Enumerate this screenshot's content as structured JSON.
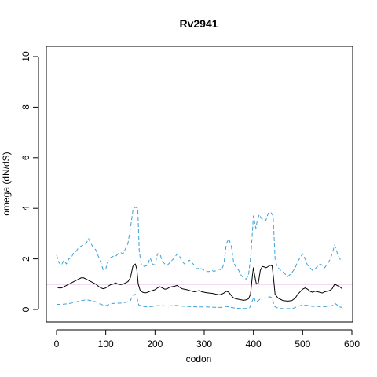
{
  "chart_data": {
    "type": "line",
    "title": "Rv2941",
    "xlabel": "codon",
    "ylabel": "omega (dN/dS)",
    "xlim": [
      0,
      600
    ],
    "ylim": [
      0,
      10
    ],
    "x_ticks": [
      0,
      100,
      200,
      300,
      400,
      500,
      600
    ],
    "y_ticks": [
      0,
      2,
      4,
      6,
      8,
      10
    ],
    "x_tick_labels": [
      "0",
      "100",
      "200",
      "300",
      "400",
      "500",
      "600"
    ],
    "y_tick_labels": [
      "0",
      "2",
      "4",
      "6",
      "8",
      "10"
    ],
    "grid": false,
    "reference_line": {
      "y": 1,
      "color": "#cc66cc"
    },
    "series": [
      {
        "role": "upper-ci",
        "color": "#3aa0d8",
        "dash": "dashed",
        "points": [
          [
            0,
            2.15
          ],
          [
            5,
            1.85
          ],
          [
            10,
            1.75
          ],
          [
            15,
            1.95
          ],
          [
            20,
            1.8
          ],
          [
            25,
            2.0
          ],
          [
            30,
            2.05
          ],
          [
            35,
            2.25
          ],
          [
            40,
            2.3
          ],
          [
            45,
            2.45
          ],
          [
            50,
            2.5
          ],
          [
            55,
            2.55
          ],
          [
            60,
            2.6
          ],
          [
            65,
            2.8
          ],
          [
            70,
            2.6
          ],
          [
            75,
            2.45
          ],
          [
            80,
            2.35
          ],
          [
            85,
            2.1
          ],
          [
            90,
            1.85
          ],
          [
            95,
            1.55
          ],
          [
            100,
            1.6
          ],
          [
            105,
            1.95
          ],
          [
            110,
            2.05
          ],
          [
            115,
            2.1
          ],
          [
            120,
            2.1
          ],
          [
            125,
            2.2
          ],
          [
            130,
            2.25
          ],
          [
            135,
            2.2
          ],
          [
            140,
            2.4
          ],
          [
            145,
            2.6
          ],
          [
            150,
            3.2
          ],
          [
            155,
            3.9
          ],
          [
            160,
            4.05
          ],
          [
            165,
            4.0
          ],
          [
            168,
            2.3
          ],
          [
            172,
            1.8
          ],
          [
            178,
            1.7
          ],
          [
            185,
            1.75
          ],
          [
            190,
            2.05
          ],
          [
            195,
            1.8
          ],
          [
            200,
            1.75
          ],
          [
            205,
            2.2
          ],
          [
            210,
            2.2
          ],
          [
            215,
            1.9
          ],
          [
            220,
            1.8
          ],
          [
            225,
            1.75
          ],
          [
            230,
            1.85
          ],
          [
            235,
            1.95
          ],
          [
            240,
            2.05
          ],
          [
            245,
            2.2
          ],
          [
            250,
            2.1
          ],
          [
            255,
            1.9
          ],
          [
            260,
            1.8
          ],
          [
            265,
            1.85
          ],
          [
            270,
            1.95
          ],
          [
            275,
            1.85
          ],
          [
            280,
            1.75
          ],
          [
            285,
            1.6
          ],
          [
            290,
            1.65
          ],
          [
            295,
            1.6
          ],
          [
            300,
            1.55
          ],
          [
            305,
            1.5
          ],
          [
            310,
            1.5
          ],
          [
            315,
            1.55
          ],
          [
            320,
            1.5
          ],
          [
            325,
            1.55
          ],
          [
            330,
            1.6
          ],
          [
            335,
            1.55
          ],
          [
            340,
            1.8
          ],
          [
            345,
            2.6
          ],
          [
            350,
            2.8
          ],
          [
            355,
            2.5
          ],
          [
            360,
            1.85
          ],
          [
            365,
            1.65
          ],
          [
            370,
            1.55
          ],
          [
            375,
            1.35
          ],
          [
            380,
            1.25
          ],
          [
            385,
            1.2
          ],
          [
            390,
            1.35
          ],
          [
            395,
            2.2
          ],
          [
            400,
            3.7
          ],
          [
            405,
            3.2
          ],
          [
            408,
            3.55
          ],
          [
            412,
            3.75
          ],
          [
            416,
            3.6
          ],
          [
            420,
            3.55
          ],
          [
            425,
            3.5
          ],
          [
            430,
            3.8
          ],
          [
            435,
            3.85
          ],
          [
            440,
            3.7
          ],
          [
            444,
            2.0
          ],
          [
            448,
            1.7
          ],
          [
            455,
            1.55
          ],
          [
            462,
            1.45
          ],
          [
            470,
            1.3
          ],
          [
            478,
            1.45
          ],
          [
            485,
            1.65
          ],
          [
            490,
            1.9
          ],
          [
            495,
            2.05
          ],
          [
            500,
            2.2
          ],
          [
            505,
            2.0
          ],
          [
            510,
            1.75
          ],
          [
            515,
            1.65
          ],
          [
            520,
            1.55
          ],
          [
            525,
            1.6
          ],
          [
            530,
            1.7
          ],
          [
            535,
            1.8
          ],
          [
            540,
            1.75
          ],
          [
            545,
            1.65
          ],
          [
            550,
            1.8
          ],
          [
            555,
            1.95
          ],
          [
            560,
            2.2
          ],
          [
            565,
            2.55
          ],
          [
            570,
            2.25
          ],
          [
            575,
            2.0
          ],
          [
            580,
            1.95
          ]
        ]
      },
      {
        "role": "estimate",
        "color": "#000000",
        "dash": "solid",
        "points": [
          [
            0,
            0.9
          ],
          [
            5,
            0.85
          ],
          [
            10,
            0.85
          ],
          [
            15,
            0.9
          ],
          [
            20,
            0.95
          ],
          [
            25,
            1.0
          ],
          [
            30,
            1.05
          ],
          [
            35,
            1.1
          ],
          [
            40,
            1.15
          ],
          [
            45,
            1.2
          ],
          [
            50,
            1.25
          ],
          [
            55,
            1.25
          ],
          [
            60,
            1.2
          ],
          [
            65,
            1.15
          ],
          [
            70,
            1.1
          ],
          [
            75,
            1.05
          ],
          [
            80,
            1.0
          ],
          [
            85,
            0.92
          ],
          [
            90,
            0.85
          ],
          [
            95,
            0.82
          ],
          [
            100,
            0.85
          ],
          [
            105,
            0.92
          ],
          [
            110,
            0.98
          ],
          [
            115,
            1.0
          ],
          [
            120,
            1.05
          ],
          [
            125,
            1.0
          ],
          [
            130,
            0.98
          ],
          [
            135,
            1.0
          ],
          [
            140,
            1.05
          ],
          [
            145,
            1.1
          ],
          [
            150,
            1.25
          ],
          [
            155,
            1.7
          ],
          [
            160,
            1.8
          ],
          [
            163,
            1.6
          ],
          [
            166,
            1.0
          ],
          [
            170,
            0.75
          ],
          [
            175,
            0.68
          ],
          [
            180,
            0.65
          ],
          [
            185,
            0.68
          ],
          [
            190,
            0.72
          ],
          [
            195,
            0.75
          ],
          [
            200,
            0.78
          ],
          [
            205,
            0.85
          ],
          [
            210,
            0.9
          ],
          [
            215,
            0.85
          ],
          [
            220,
            0.8
          ],
          [
            225,
            0.82
          ],
          [
            230,
            0.88
          ],
          [
            235,
            0.9
          ],
          [
            240,
            0.92
          ],
          [
            245,
            0.95
          ],
          [
            250,
            0.88
          ],
          [
            255,
            0.82
          ],
          [
            260,
            0.8
          ],
          [
            265,
            0.78
          ],
          [
            270,
            0.75
          ],
          [
            275,
            0.72
          ],
          [
            280,
            0.7
          ],
          [
            285,
            0.72
          ],
          [
            290,
            0.75
          ],
          [
            295,
            0.7
          ],
          [
            300,
            0.68
          ],
          [
            305,
            0.66
          ],
          [
            310,
            0.65
          ],
          [
            315,
            0.64
          ],
          [
            320,
            0.62
          ],
          [
            325,
            0.6
          ],
          [
            330,
            0.58
          ],
          [
            335,
            0.6
          ],
          [
            340,
            0.65
          ],
          [
            345,
            0.72
          ],
          [
            350,
            0.68
          ],
          [
            355,
            0.55
          ],
          [
            360,
            0.45
          ],
          [
            365,
            0.42
          ],
          [
            370,
            0.4
          ],
          [
            375,
            0.38
          ],
          [
            380,
            0.36
          ],
          [
            385,
            0.38
          ],
          [
            390,
            0.42
          ],
          [
            394,
            0.6
          ],
          [
            398,
            1.35
          ],
          [
            400,
            1.65
          ],
          [
            403,
            1.3
          ],
          [
            406,
            1.0
          ],
          [
            410,
            1.05
          ],
          [
            414,
            1.55
          ],
          [
            418,
            1.7
          ],
          [
            422,
            1.68
          ],
          [
            426,
            1.65
          ],
          [
            430,
            1.7
          ],
          [
            434,
            1.75
          ],
          [
            438,
            1.72
          ],
          [
            441,
            1.2
          ],
          [
            444,
            0.6
          ],
          [
            450,
            0.45
          ],
          [
            455,
            0.4
          ],
          [
            460,
            0.35
          ],
          [
            470,
            0.33
          ],
          [
            478,
            0.35
          ],
          [
            485,
            0.45
          ],
          [
            490,
            0.6
          ],
          [
            495,
            0.7
          ],
          [
            500,
            0.8
          ],
          [
            505,
            0.85
          ],
          [
            510,
            0.8
          ],
          [
            515,
            0.72
          ],
          [
            520,
            0.68
          ],
          [
            525,
            0.72
          ],
          [
            530,
            0.7
          ],
          [
            535,
            0.68
          ],
          [
            540,
            0.65
          ],
          [
            545,
            0.7
          ],
          [
            550,
            0.72
          ],
          [
            555,
            0.75
          ],
          [
            560,
            0.82
          ],
          [
            565,
            1.0
          ],
          [
            570,
            0.95
          ],
          [
            575,
            0.9
          ],
          [
            580,
            0.82
          ]
        ]
      },
      {
        "role": "lower-ci",
        "color": "#3aa0d8",
        "dash": "dashed",
        "points": [
          [
            0,
            0.2
          ],
          [
            10,
            0.2
          ],
          [
            20,
            0.22
          ],
          [
            30,
            0.25
          ],
          [
            40,
            0.3
          ],
          [
            50,
            0.35
          ],
          [
            60,
            0.38
          ],
          [
            70,
            0.35
          ],
          [
            80,
            0.3
          ],
          [
            90,
            0.2
          ],
          [
            100,
            0.15
          ],
          [
            110,
            0.22
          ],
          [
            120,
            0.25
          ],
          [
            130,
            0.25
          ],
          [
            140,
            0.28
          ],
          [
            150,
            0.35
          ],
          [
            155,
            0.55
          ],
          [
            160,
            0.6
          ],
          [
            163,
            0.5
          ],
          [
            167,
            0.18
          ],
          [
            175,
            0.12
          ],
          [
            185,
            0.1
          ],
          [
            195,
            0.12
          ],
          [
            205,
            0.15
          ],
          [
            215,
            0.15
          ],
          [
            225,
            0.13
          ],
          [
            235,
            0.15
          ],
          [
            245,
            0.16
          ],
          [
            255,
            0.13
          ],
          [
            265,
            0.12
          ],
          [
            275,
            0.11
          ],
          [
            285,
            0.1
          ],
          [
            295,
            0.1
          ],
          [
            305,
            0.1
          ],
          [
            315,
            0.09
          ],
          [
            325,
            0.08
          ],
          [
            335,
            0.08
          ],
          [
            345,
            0.12
          ],
          [
            355,
            0.08
          ],
          [
            365,
            0.05
          ],
          [
            375,
            0.04
          ],
          [
            385,
            0.04
          ],
          [
            392,
            0.05
          ],
          [
            398,
            0.35
          ],
          [
            401,
            0.5
          ],
          [
            404,
            0.3
          ],
          [
            410,
            0.35
          ],
          [
            416,
            0.45
          ],
          [
            422,
            0.45
          ],
          [
            428,
            0.48
          ],
          [
            434,
            0.5
          ],
          [
            438,
            0.45
          ],
          [
            443,
            0.12
          ],
          [
            450,
            0.05
          ],
          [
            460,
            0.03
          ],
          [
            470,
            0.03
          ],
          [
            480,
            0.04
          ],
          [
            490,
            0.12
          ],
          [
            500,
            0.18
          ],
          [
            510,
            0.16
          ],
          [
            520,
            0.12
          ],
          [
            530,
            0.12
          ],
          [
            540,
            0.1
          ],
          [
            550,
            0.12
          ],
          [
            560,
            0.15
          ],
          [
            565,
            0.25
          ],
          [
            570,
            0.18
          ],
          [
            575,
            0.1
          ],
          [
            580,
            0.08
          ]
        ]
      }
    ]
  }
}
